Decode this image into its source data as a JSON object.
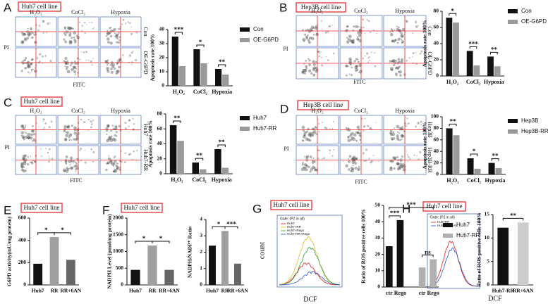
{
  "panels": [
    {
      "letter": "A",
      "cell_line": "Huh7 cell line",
      "conditions": [
        "H₂O₂",
        "CoCl₂",
        "Hypoxia"
      ],
      "rows": [
        "Con",
        "OE-G6PD"
      ],
      "x_label": "FITC",
      "y_label": "PI"
    },
    {
      "letter": "B",
      "cell_line": "Hep3B cell line",
      "conditions": [
        "H₂O₂",
        "CoCl₂",
        "Hypoxia"
      ],
      "rows": [
        "Con",
        "OE-G6PD"
      ],
      "x_label": "FITC",
      "y_label": "PI"
    },
    {
      "letter": "C",
      "cell_line": "Huh7 cell line",
      "conditions": [
        "H₂O₂",
        "CoCl₂",
        "Hypoxia"
      ],
      "rows": [
        "Huh7",
        "Huh7-RR"
      ],
      "x_label": "FITC",
      "y_label": "PI"
    },
    {
      "letter": "D",
      "cell_line": "Hep3B cell line",
      "conditions": [
        "H₂O₂",
        "CoCl₂",
        "Hypoxia"
      ],
      "rows": [
        "Hep3B",
        "Hep3B-RR"
      ],
      "x_label": "FITC",
      "y_label": "PI"
    },
    {
      "letter": "E",
      "cell_line": "Huh7 cell line"
    },
    {
      "letter": "F",
      "cell_line": "Huh7 cell line"
    },
    {
      "letter": "G",
      "cell_line": "Huh7 cell line",
      "hist": {
        "gate": "Gate: (P2 in all)",
        "x_label": "DCF",
        "y_label": "count",
        "legend": [
          "Huh7",
          "Huh7+RR",
          "Huh7+Rego",
          "Huh7-RR+Rego"
        ]
      }
    },
    {
      "letter": "H",
      "cell_line": "Huh7 cell line",
      "hist": {
        "gate": "Gate: (P2 in all)",
        "x_label": "DCF",
        "legend": [
          "Huh7RR",
          "Huh7RR+6AN"
        ]
      }
    }
  ],
  "chart_data": [
    {
      "type": "bar",
      "y_label": "Apoptosis rate 100%",
      "categories": [
        "H₂O₂",
        "CoCl₂",
        "Hypoxia"
      ],
      "series": [
        {
          "name": "Con",
          "color": "#111111",
          "values": [
            35,
            26,
            12
          ]
        },
        {
          "name": "OE-G6PD",
          "color": "#9a9a9a",
          "values": [
            14,
            16,
            8
          ]
        }
      ],
      "ylim": [
        0,
        40
      ],
      "yticks": [
        0,
        10,
        20,
        30,
        40
      ],
      "annotations": [
        "***",
        "*",
        "**"
      ]
    },
    {
      "type": "bar",
      "y_label": "Apoptosis rate 100%",
      "categories": [
        "H₂O₂",
        "CoCl₂",
        "Hypoxia"
      ],
      "series": [
        {
          "name": "Con",
          "color": "#111111",
          "values": [
            72,
            31,
            24
          ]
        },
        {
          "name": "OE-G6PD",
          "color": "#9a9a9a",
          "values": [
            66,
            13,
            12
          ]
        }
      ],
      "ylim": [
        0,
        80
      ],
      "yticks": [
        0,
        20,
        40,
        60,
        80
      ],
      "annotations": [
        "*",
        "***",
        "**"
      ]
    },
    {
      "type": "bar",
      "y_label": "Apoptosis rate 100%",
      "categories": [
        "H₂O₂",
        "CoCl₂",
        "Hypoxia"
      ],
      "series": [
        {
          "name": "Huh7",
          "color": "#111111",
          "values": [
            65,
            15,
            33
          ]
        },
        {
          "name": "Huh7-RR",
          "color": "#9a9a9a",
          "values": [
            44,
            6,
            8
          ]
        }
      ],
      "ylim": [
        0,
        80
      ],
      "yticks": [
        0,
        20,
        40,
        60,
        80
      ],
      "annotations": [
        "**",
        "**",
        "**"
      ]
    },
    {
      "type": "bar",
      "y_label": "Apoptosis rate 100%",
      "categories": [
        "H₂O₂",
        "CoCl₂",
        "Hypoxia"
      ],
      "series": [
        {
          "name": "Hep3B",
          "color": "#111111",
          "values": [
            80,
            28,
            20
          ]
        },
        {
          "name": "Hep3B-RR",
          "color": "#9a9a9a",
          "values": [
            68,
            10,
            11
          ]
        }
      ],
      "ylim": [
        0,
        100
      ],
      "yticks": [
        0,
        20,
        40,
        60,
        80,
        100
      ],
      "annotations": [
        "**",
        "*",
        "**"
      ]
    },
    {
      "type": "bar",
      "y_label": "G6PD activity(mU/mg protein)",
      "categories": [
        "Huh7",
        "RR",
        "RR+6AN"
      ],
      "values": [
        190,
        430,
        225
      ],
      "colors": [
        "#111111",
        "#a0a0a0",
        "#666666"
      ],
      "ylim": [
        0,
        600
      ],
      "yticks": [
        0,
        200,
        400,
        600
      ],
      "annotations": [
        "*",
        "*"
      ]
    },
    {
      "type": "bar",
      "y_label": "NADPH Level (pmol/mg protein)",
      "categories": [
        "Huh7",
        "RR",
        "RR+6AN"
      ],
      "values": [
        450,
        1180,
        450
      ],
      "colors": [
        "#111111",
        "#a0a0a0",
        "#666666"
      ],
      "ylim": [
        0,
        2000
      ],
      "yticks": [
        0,
        500,
        1000,
        1500,
        2000
      ],
      "annotations": [
        "*",
        "*"
      ]
    },
    {
      "type": "bar",
      "y_label": "NADPH/NADP⁺ Ratio",
      "categories": [
        "Huh7",
        "RR",
        "RR+6AN"
      ],
      "values": [
        2.4,
        3.3,
        1.3
      ],
      "colors": [
        "#111111",
        "#a0a0a0",
        "#666666"
      ],
      "ylim": [
        0,
        4
      ],
      "yticks": [
        0,
        1,
        2,
        3,
        4
      ],
      "annotations": [
        "*",
        "***"
      ]
    },
    {
      "type": "bar",
      "y_label": "Ratio of ROS positive cells 100%",
      "categories": [
        "ctr",
        "Rego"
      ],
      "series": [
        {
          "name": "Huh7",
          "color": "#111111",
          "values": [
            25,
            41
          ]
        },
        {
          "name": "Huh7-RR",
          "color": "#b0b0b0",
          "values": [
            12,
            17
          ]
        }
      ],
      "ylim": [
        0,
        50
      ],
      "yticks": [
        0,
        10,
        20,
        30,
        40,
        50
      ],
      "annotations": [
        "***",
        "***",
        "ns"
      ]
    },
    {
      "type": "bar",
      "y_label": "Ratio of ROS positive cells 100%",
      "categories": [
        "Huh7-RR",
        "RR+6AN"
      ],
      "values": [
        12.2,
        13.3
      ],
      "colors": [
        "#111111",
        "#cccccc"
      ],
      "ylim": [
        0,
        15
      ],
      "yticks": [
        0,
        5,
        10,
        15
      ],
      "annotations": [
        "**"
      ]
    }
  ]
}
